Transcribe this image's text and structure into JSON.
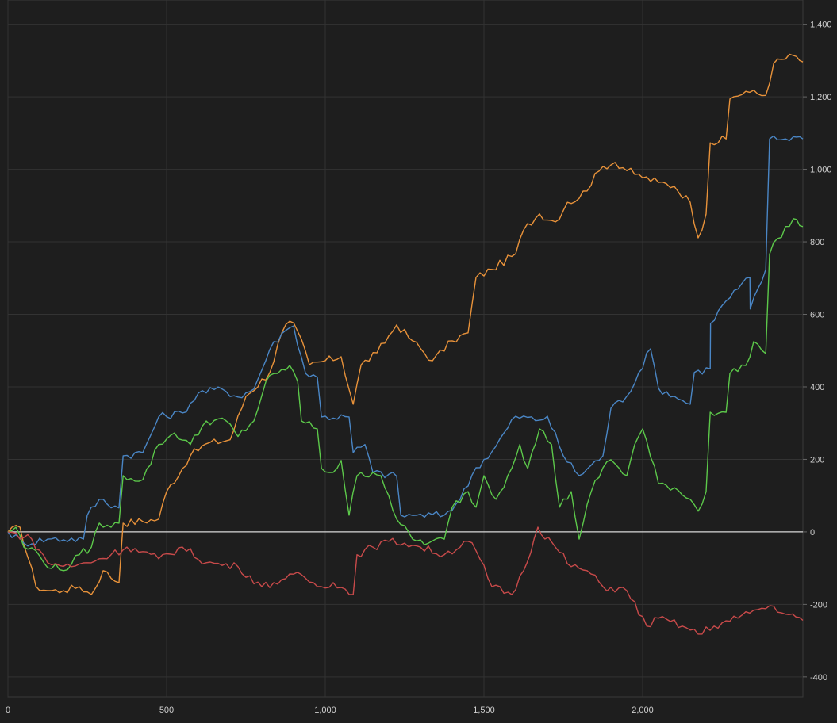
{
  "chart_data": {
    "type": "line",
    "title": "",
    "xlabel": "",
    "ylabel": "",
    "xlim": [
      0,
      2505
    ],
    "ylim": [
      -455,
      1467
    ],
    "grid": true,
    "x_ticks": [
      0,
      500,
      1000,
      1500,
      2000
    ],
    "x_tick_labels": [
      "0",
      "500",
      "1,000",
      "1,500",
      "2,000"
    ],
    "y_ticks": [
      -400,
      -200,
      0,
      200,
      400,
      600,
      800,
      1000,
      1200,
      1400
    ],
    "y_tick_labels": [
      "-400",
      "-200",
      "0",
      "200",
      "400",
      "600",
      "800",
      "1,000",
      "1,200",
      "1,400"
    ],
    "y_axis_position": "right",
    "zero_line_color": "#d8d8d8",
    "series": [
      {
        "name": "orange",
        "color": "#e8923a",
        "points": [
          [
            0,
            0
          ],
          [
            38,
            13
          ],
          [
            88,
            -150
          ],
          [
            125,
            -162
          ],
          [
            175,
            -162
          ],
          [
            225,
            -151
          ],
          [
            263,
            -173
          ],
          [
            300,
            -107
          ],
          [
            350,
            -140
          ],
          [
            363,
            24
          ],
          [
            475,
            35
          ],
          [
            500,
            111
          ],
          [
            575,
            210
          ],
          [
            625,
            243
          ],
          [
            700,
            254
          ],
          [
            750,
            374
          ],
          [
            825,
            439
          ],
          [
            863,
            549
          ],
          [
            888,
            581
          ],
          [
            913,
            553
          ],
          [
            950,
            461
          ],
          [
            1000,
            472
          ],
          [
            1050,
            483
          ],
          [
            1088,
            352
          ],
          [
            1113,
            461
          ],
          [
            1163,
            494
          ],
          [
            1225,
            571
          ],
          [
            1275,
            527
          ],
          [
            1338,
            472
          ],
          [
            1400,
            527
          ],
          [
            1450,
            549
          ],
          [
            1475,
            702
          ],
          [
            1525,
            724
          ],
          [
            1600,
            767
          ],
          [
            1625,
            833
          ],
          [
            1675,
            877
          ],
          [
            1725,
            855
          ],
          [
            1763,
            909
          ],
          [
            1800,
            920
          ],
          [
            1875,
            1008
          ],
          [
            1913,
            1019
          ],
          [
            1975,
            986
          ],
          [
            2050,
            964
          ],
          [
            2100,
            953
          ],
          [
            2150,
            909
          ],
          [
            2175,
            811
          ],
          [
            2200,
            877
          ],
          [
            2213,
            1073
          ],
          [
            2263,
            1084
          ],
          [
            2275,
            1194
          ],
          [
            2325,
            1215
          ],
          [
            2388,
            1204
          ],
          [
            2413,
            1292
          ],
          [
            2475,
            1314
          ],
          [
            2505,
            1296
          ]
        ]
      },
      {
        "name": "blue",
        "color": "#4a86c5",
        "points": [
          [
            0,
            0
          ],
          [
            50,
            -31
          ],
          [
            125,
            -20
          ],
          [
            238,
            -20
          ],
          [
            250,
            46
          ],
          [
            288,
            90
          ],
          [
            350,
            66
          ],
          [
            363,
            210
          ],
          [
            425,
            219
          ],
          [
            475,
            317
          ],
          [
            550,
            328
          ],
          [
            600,
            383
          ],
          [
            675,
            394
          ],
          [
            725,
            372
          ],
          [
            775,
            394
          ],
          [
            825,
            503
          ],
          [
            863,
            547
          ],
          [
            900,
            568
          ],
          [
            938,
            437
          ],
          [
            975,
            426
          ],
          [
            988,
            317
          ],
          [
            1075,
            317
          ],
          [
            1088,
            219
          ],
          [
            1125,
            241
          ],
          [
            1150,
            164
          ],
          [
            1225,
            153
          ],
          [
            1238,
            46
          ],
          [
            1288,
            46
          ],
          [
            1375,
            46
          ],
          [
            1425,
            90
          ],
          [
            1475,
            177
          ],
          [
            1525,
            221
          ],
          [
            1600,
            319
          ],
          [
            1675,
            308
          ],
          [
            1700,
            319
          ],
          [
            1750,
            210
          ],
          [
            1800,
            155
          ],
          [
            1875,
            210
          ],
          [
            1900,
            341
          ],
          [
            1950,
            374
          ],
          [
            2025,
            505
          ],
          [
            2050,
            396
          ],
          [
            2100,
            374
          ],
          [
            2150,
            352
          ],
          [
            2163,
            440
          ],
          [
            2213,
            450
          ],
          [
            2214,
            575
          ],
          [
            2263,
            637
          ],
          [
            2338,
            702
          ],
          [
            2339,
            615
          ],
          [
            2388,
            724
          ],
          [
            2400,
            1084
          ],
          [
            2450,
            1084
          ],
          [
            2475,
            1090
          ],
          [
            2505,
            1084
          ]
        ]
      },
      {
        "name": "green",
        "color": "#5cc84a",
        "points": [
          [
            0,
            0
          ],
          [
            25,
            13
          ],
          [
            50,
            -42
          ],
          [
            88,
            -52
          ],
          [
            113,
            -85
          ],
          [
            175,
            -107
          ],
          [
            225,
            -63
          ],
          [
            263,
            -42
          ],
          [
            288,
            24
          ],
          [
            325,
            13
          ],
          [
            350,
            24
          ],
          [
            363,
            155
          ],
          [
            425,
            144
          ],
          [
            475,
            241
          ],
          [
            525,
            273
          ],
          [
            575,
            241
          ],
          [
            625,
            306
          ],
          [
            688,
            306
          ],
          [
            725,
            263
          ],
          [
            775,
            306
          ],
          [
            813,
            415
          ],
          [
            850,
            437
          ],
          [
            888,
            459
          ],
          [
            913,
            415
          ],
          [
            925,
            306
          ],
          [
            975,
            284
          ],
          [
            988,
            175
          ],
          [
            1025,
            164
          ],
          [
            1050,
            197
          ],
          [
            1075,
            46
          ],
          [
            1100,
            155
          ],
          [
            1150,
            164
          ],
          [
            1175,
            155
          ],
          [
            1200,
            100
          ],
          [
            1225,
            35
          ],
          [
            1275,
            -20
          ],
          [
            1325,
            -31
          ],
          [
            1375,
            -20
          ],
          [
            1400,
            68
          ],
          [
            1450,
            111
          ],
          [
            1475,
            68
          ],
          [
            1500,
            155
          ],
          [
            1538,
            90
          ],
          [
            1575,
            155
          ],
          [
            1613,
            241
          ],
          [
            1638,
            175
          ],
          [
            1675,
            284
          ],
          [
            1713,
            241
          ],
          [
            1738,
            68
          ],
          [
            1775,
            111
          ],
          [
            1800,
            -20
          ],
          [
            1838,
            111
          ],
          [
            1875,
            177
          ],
          [
            1900,
            199
          ],
          [
            1950,
            155
          ],
          [
            1975,
            241
          ],
          [
            2000,
            284
          ],
          [
            2050,
            133
          ],
          [
            2100,
            122
          ],
          [
            2150,
            90
          ],
          [
            2175,
            57
          ],
          [
            2200,
            111
          ],
          [
            2213,
            330
          ],
          [
            2263,
            330
          ],
          [
            2275,
            437
          ],
          [
            2325,
            459
          ],
          [
            2350,
            525
          ],
          [
            2388,
            492
          ],
          [
            2400,
            766
          ],
          [
            2425,
            809
          ],
          [
            2475,
            864
          ],
          [
            2505,
            842
          ]
        ]
      },
      {
        "name": "red",
        "color": "#c84a4a",
        "points": [
          [
            0,
            0
          ],
          [
            75,
            -20
          ],
          [
            125,
            -85
          ],
          [
            200,
            -96
          ],
          [
            250,
            -85
          ],
          [
            325,
            -63
          ],
          [
            375,
            -42
          ],
          [
            475,
            -74
          ],
          [
            550,
            -42
          ],
          [
            625,
            -85
          ],
          [
            725,
            -96
          ],
          [
            800,
            -151
          ],
          [
            875,
            -129
          ],
          [
            925,
            -118
          ],
          [
            975,
            -151
          ],
          [
            1025,
            -140
          ],
          [
            1088,
            -173
          ],
          [
            1100,
            -63
          ],
          [
            1150,
            -42
          ],
          [
            1200,
            -26
          ],
          [
            1250,
            -31
          ],
          [
            1300,
            -42
          ],
          [
            1375,
            -63
          ],
          [
            1450,
            -26
          ],
          [
            1475,
            -52
          ],
          [
            1525,
            -151
          ],
          [
            1588,
            -173
          ],
          [
            1625,
            -107
          ],
          [
            1670,
            13
          ],
          [
            1725,
            -42
          ],
          [
            1775,
            -96
          ],
          [
            1825,
            -107
          ],
          [
            1875,
            -151
          ],
          [
            1950,
            -162
          ],
          [
            2013,
            -260
          ],
          [
            2050,
            -238
          ],
          [
            2125,
            -260
          ],
          [
            2175,
            -282
          ],
          [
            2225,
            -260
          ],
          [
            2300,
            -238
          ],
          [
            2350,
            -216
          ],
          [
            2413,
            -205
          ],
          [
            2450,
            -227
          ],
          [
            2505,
            -244
          ]
        ]
      }
    ]
  }
}
